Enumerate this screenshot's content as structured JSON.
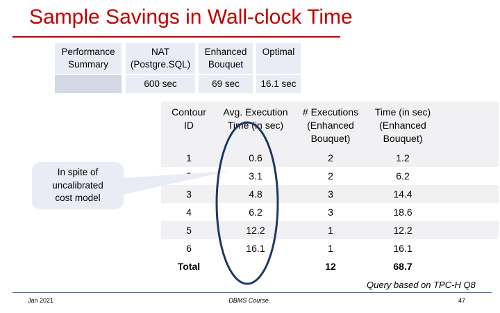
{
  "title": "Sample Savings in Wall-clock Time",
  "summary": {
    "header_label": "Performance\nSummary",
    "columns": [
      "NAT\n(Postgre.SQL)",
      "Enhanced\nBouquet",
      "Optimal"
    ],
    "values": [
      "600 sec",
      "69 sec",
      "16.1 sec"
    ]
  },
  "table": {
    "headers": [
      "Contour\nID",
      "Avg. Execution\nTime (in sec)",
      "# Executions\n(Enhanced\nBouquet)",
      "Time (in sec)\n(Enhanced\nBouquet)"
    ],
    "rows": [
      [
        "1",
        "0.6",
        "2",
        "1.2"
      ],
      [
        "2",
        "3.1",
        "2",
        "6.2"
      ],
      [
        "3",
        "4.8",
        "3",
        "14.4"
      ],
      [
        "4",
        "6.2",
        "3",
        "18.6"
      ],
      [
        "5",
        "12.2",
        "1",
        "12.2"
      ],
      [
        "6",
        "16.1",
        "1",
        "16.1"
      ]
    ],
    "total_label": "Total",
    "total_executions": "12",
    "total_time": "68.7"
  },
  "callout": "In spite of\nuncalibrated\ncost model",
  "query_note": "Query based on TPC-H Q8",
  "footer": {
    "date": "Jan 2021",
    "course": "DBMS Course",
    "page": "47"
  },
  "colors": {
    "title": "#c00000",
    "cell_fill": "#e9ecf5",
    "oval_stroke": "#1f3864",
    "footer_rule": "#4a6fb5"
  }
}
